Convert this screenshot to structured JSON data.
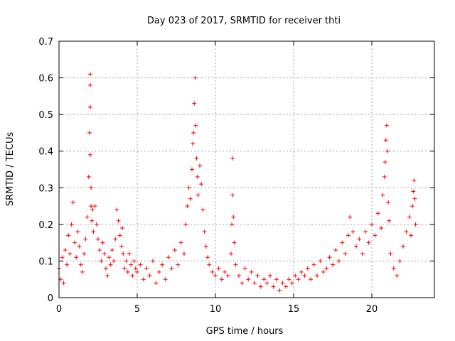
{
  "chart_data": {
    "type": "scatter",
    "title": "Day 023 of 2017, SRMTID for receiver thti",
    "xlabel": "GPS time / hours",
    "ylabel": "SRMTID / TECUs",
    "xlim": [
      0,
      24
    ],
    "ylim": [
      0,
      0.7
    ],
    "xticks": [
      0,
      5,
      10,
      15,
      20
    ],
    "yticks": [
      0,
      0.1,
      0.2,
      0.3,
      0.4,
      0.5,
      0.6,
      0.7
    ],
    "xtick_labels": [
      "0",
      "5",
      "10",
      "15",
      "20"
    ],
    "ytick_labels": [
      "0",
      "0.1",
      "0.2",
      "0.3",
      "0.4",
      "0.5",
      "0.6",
      "0.7"
    ],
    "grid": true,
    "marker": "plus",
    "marker_color": "#ff0000",
    "series": [
      {
        "name": "SRMTID",
        "x": [
          0.0,
          0.1,
          0.2,
          0.3,
          0.4,
          0.5,
          0.6,
          0.7,
          0.8,
          0.9,
          1.0,
          1.1,
          1.2,
          1.3,
          1.4,
          1.5,
          1.6,
          1.7,
          1.8,
          1.9,
          1.95,
          2.0,
          2.0,
          2.0,
          2.0,
          2.05,
          2.05,
          2.1,
          2.15,
          2.2,
          2.3,
          2.4,
          2.5,
          2.6,
          2.7,
          2.8,
          2.9,
          3.0,
          3.1,
          3.2,
          3.3,
          3.4,
          3.5,
          3.6,
          3.7,
          3.8,
          3.9,
          4.0,
          4.05,
          4.1,
          4.2,
          4.3,
          4.4,
          4.5,
          4.6,
          4.7,
          4.8,
          4.9,
          5.0,
          5.2,
          5.4,
          5.6,
          5.8,
          6.0,
          6.2,
          6.4,
          6.6,
          6.8,
          7.0,
          7.2,
          7.4,
          7.6,
          7.8,
          8.0,
          8.1,
          8.2,
          8.3,
          8.4,
          8.5,
          8.55,
          8.6,
          8.65,
          8.7,
          8.75,
          8.8,
          8.85,
          8.9,
          9.0,
          9.1,
          9.2,
          9.3,
          9.4,
          9.5,
          9.6,
          9.8,
          10.0,
          10.2,
          10.4,
          10.6,
          10.8,
          11.0,
          11.05,
          11.1,
          11.1,
          11.15,
          11.2,
          11.3,
          11.5,
          11.7,
          11.9,
          12.1,
          12.3,
          12.5,
          12.7,
          12.9,
          13.1,
          13.3,
          13.5,
          13.7,
          13.9,
          14.1,
          14.3,
          14.5,
          14.7,
          14.9,
          15.1,
          15.3,
          15.5,
          15.7,
          15.9,
          16.1,
          16.3,
          16.5,
          16.7,
          16.9,
          17.1,
          17.3,
          17.5,
          17.7,
          17.9,
          18.1,
          18.3,
          18.5,
          18.6,
          18.8,
          19.0,
          19.2,
          19.4,
          19.6,
          19.8,
          20.0,
          20.2,
          20.4,
          20.6,
          20.7,
          20.8,
          20.85,
          20.9,
          20.95,
          21.0,
          21.05,
          21.1,
          21.2,
          21.4,
          21.6,
          21.8,
          22.0,
          22.2,
          22.4,
          22.5,
          22.6,
          22.65,
          22.7,
          22.75,
          22.8
        ],
        "y": [
          0.08,
          0.05,
          0.11,
          0.04,
          0.13,
          0.09,
          0.17,
          0.12,
          0.2,
          0.26,
          0.15,
          0.11,
          0.18,
          0.14,
          0.09,
          0.07,
          0.12,
          0.16,
          0.22,
          0.33,
          0.45,
          0.52,
          0.58,
          0.61,
          0.39,
          0.3,
          0.25,
          0.21,
          0.24,
          0.18,
          0.25,
          0.2,
          0.16,
          0.13,
          0.1,
          0.15,
          0.12,
          0.08,
          0.06,
          0.11,
          0.09,
          0.13,
          0.1,
          0.16,
          0.24,
          0.21,
          0.17,
          0.14,
          0.19,
          0.12,
          0.08,
          0.1,
          0.07,
          0.12,
          0.09,
          0.06,
          0.1,
          0.08,
          0.07,
          0.09,
          0.05,
          0.08,
          0.06,
          0.1,
          0.04,
          0.07,
          0.09,
          0.05,
          0.11,
          0.08,
          0.13,
          0.09,
          0.15,
          0.12,
          0.2,
          0.25,
          0.3,
          0.27,
          0.35,
          0.42,
          0.45,
          0.53,
          0.6,
          0.47,
          0.38,
          0.33,
          0.28,
          0.36,
          0.31,
          0.24,
          0.18,
          0.14,
          0.11,
          0.09,
          0.07,
          0.06,
          0.08,
          0.05,
          0.07,
          0.06,
          0.12,
          0.2,
          0.28,
          0.38,
          0.22,
          0.15,
          0.09,
          0.06,
          0.04,
          0.08,
          0.05,
          0.07,
          0.04,
          0.06,
          0.03,
          0.05,
          0.04,
          0.06,
          0.03,
          0.05,
          0.02,
          0.04,
          0.03,
          0.05,
          0.04,
          0.06,
          0.05,
          0.07,
          0.06,
          0.08,
          0.05,
          0.09,
          0.06,
          0.1,
          0.07,
          0.08,
          0.11,
          0.09,
          0.13,
          0.1,
          0.15,
          0.12,
          0.17,
          0.22,
          0.18,
          0.14,
          0.16,
          0.12,
          0.18,
          0.15,
          0.2,
          0.17,
          0.23,
          0.19,
          0.28,
          0.33,
          0.37,
          0.43,
          0.47,
          0.4,
          0.26,
          0.21,
          0.12,
          0.08,
          0.06,
          0.1,
          0.14,
          0.18,
          0.22,
          0.17,
          0.25,
          0.29,
          0.32,
          0.27,
          0.2
        ]
      }
    ]
  }
}
